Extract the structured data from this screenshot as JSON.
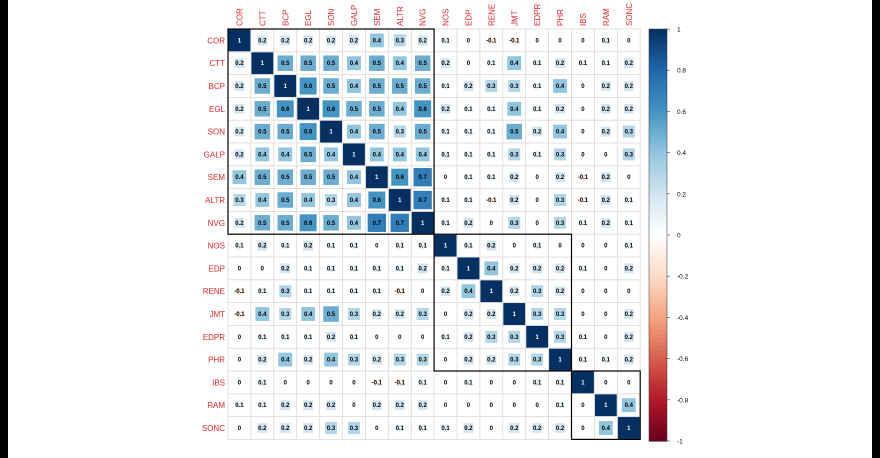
{
  "chart_data": {
    "type": "heatmap",
    "variables": [
      "COR",
      "CTT",
      "BCP",
      "EGL",
      "SON",
      "GALP",
      "SEM",
      "ALTR",
      "NVG",
      "NOS",
      "EDP",
      "RENE",
      "JMT",
      "EDPR",
      "PHR",
      "IBS",
      "RAM",
      "SONC"
    ],
    "matrix": [
      [
        1,
        0.2,
        0.2,
        0.2,
        0.2,
        0.2,
        0.4,
        0.3,
        0.2,
        0.1,
        0,
        -0.1,
        -0.1,
        0,
        0,
        0,
        0.1,
        0
      ],
      [
        0.2,
        1,
        0.5,
        0.5,
        0.5,
        0.4,
        0.5,
        0.4,
        0.5,
        0.2,
        0,
        0.1,
        0.4,
        0.1,
        0.2,
        0.1,
        0.1,
        0.2
      ],
      [
        0.2,
        0.5,
        1,
        0.6,
        0.5,
        0.4,
        0.5,
        0.5,
        0.5,
        0.1,
        0.2,
        0.3,
        0.3,
        0.1,
        0.4,
        0,
        0.2,
        0.2
      ],
      [
        0.2,
        0.5,
        0.6,
        1,
        0.6,
        0.5,
        0.5,
        0.4,
        0.6,
        0.2,
        0.1,
        0.1,
        0.4,
        0.1,
        0.2,
        0,
        0.2,
        0.2
      ],
      [
        0.2,
        0.5,
        0.5,
        0.6,
        1,
        0.4,
        0.5,
        0.3,
        0.5,
        0.1,
        0.1,
        0.1,
        0.5,
        0.2,
        0.4,
        0,
        0.2,
        0.3
      ],
      [
        0.2,
        0.4,
        0.4,
        0.5,
        0.4,
        1,
        0.4,
        0.4,
        0.4,
        0.1,
        0.1,
        0.1,
        0.3,
        0.1,
        0.3,
        0,
        0,
        0.3
      ],
      [
        0.4,
        0.5,
        0.5,
        0.5,
        0.5,
        0.4,
        1,
        0.6,
        0.7,
        0,
        0.1,
        0.1,
        0.2,
        0,
        0.2,
        -0.1,
        0.2,
        0
      ],
      [
        0.3,
        0.4,
        0.5,
        0.4,
        0.3,
        0.4,
        0.6,
        1,
        0.7,
        0.1,
        0.1,
        -0.1,
        0.2,
        0,
        0.3,
        -0.1,
        0.2,
        0.1
      ],
      [
        0.2,
        0.5,
        0.5,
        0.6,
        0.5,
        0.4,
        0.7,
        0.7,
        1,
        0.1,
        0.2,
        0,
        0.3,
        0,
        0.3,
        0.1,
        0.2,
        0.1
      ],
      [
        0.1,
        0.2,
        0.1,
        0.2,
        0.1,
        0.1,
        0,
        0.1,
        0.1,
        1,
        0.1,
        0.2,
        0,
        0.1,
        0,
        0,
        0,
        0.1
      ],
      [
        0,
        0,
        0.2,
        0.1,
        0.1,
        0.1,
        0.1,
        0.1,
        0.2,
        0.1,
        1,
        0.4,
        0.2,
        0.2,
        0.2,
        0.1,
        0,
        0.2
      ],
      [
        -0.1,
        0.1,
        0.3,
        0.1,
        0.1,
        0.1,
        0.1,
        -0.1,
        0,
        0.2,
        0.4,
        1,
        0.2,
        0.3,
        0.2,
        0,
        0,
        0
      ],
      [
        -0.1,
        0.4,
        0.3,
        0.4,
        0.5,
        0.3,
        0.2,
        0.2,
        0.3,
        0,
        0.2,
        0.2,
        1,
        0.3,
        0.3,
        0,
        0,
        0.2
      ],
      [
        0,
        0.1,
        0.1,
        0.1,
        0.2,
        0.1,
        0,
        0,
        0,
        0.1,
        0.2,
        0.3,
        0.3,
        1,
        0.3,
        0.1,
        0,
        0.2
      ],
      [
        0,
        0.2,
        0.4,
        0.2,
        0.4,
        0.3,
        0.2,
        0.3,
        0.3,
        0,
        0.2,
        0.2,
        0.3,
        0.3,
        1,
        0.1,
        0.1,
        0.2
      ],
      [
        0,
        0.1,
        0,
        0,
        0,
        0,
        -0.1,
        -0.1,
        0.1,
        0,
        0.1,
        0,
        0,
        0.1,
        0.1,
        1,
        0,
        0
      ],
      [
        0.1,
        0.1,
        0.2,
        0.2,
        0.2,
        0,
        0.2,
        0.2,
        0.2,
        0,
        0,
        0,
        0,
        0,
        0.1,
        0,
        1,
        0.4
      ],
      [
        0,
        0.2,
        0.2,
        0.2,
        0.3,
        0.3,
        0,
        0.1,
        0.1,
        0.1,
        0.2,
        0,
        0.2,
        0.2,
        0.2,
        0,
        0.4,
        1
      ]
    ],
    "cluster_blocks": [
      [
        "COR",
        "NVG"
      ],
      [
        "NOS",
        "PHR"
      ],
      [
        "IBS",
        "SONC"
      ]
    ],
    "colorbar": {
      "range": [
        -1,
        1
      ],
      "ticks": [
        "1",
        "0.8",
        "0.6",
        "0.4",
        "0.2",
        "0",
        "-0.2",
        "-0.4",
        "-0.6",
        "-0.8",
        "-1"
      ],
      "low_color": "#67001f",
      "mid_color": "#ffffff",
      "high_color": "#053061"
    },
    "label_color": "#e8262a",
    "grid": true
  }
}
